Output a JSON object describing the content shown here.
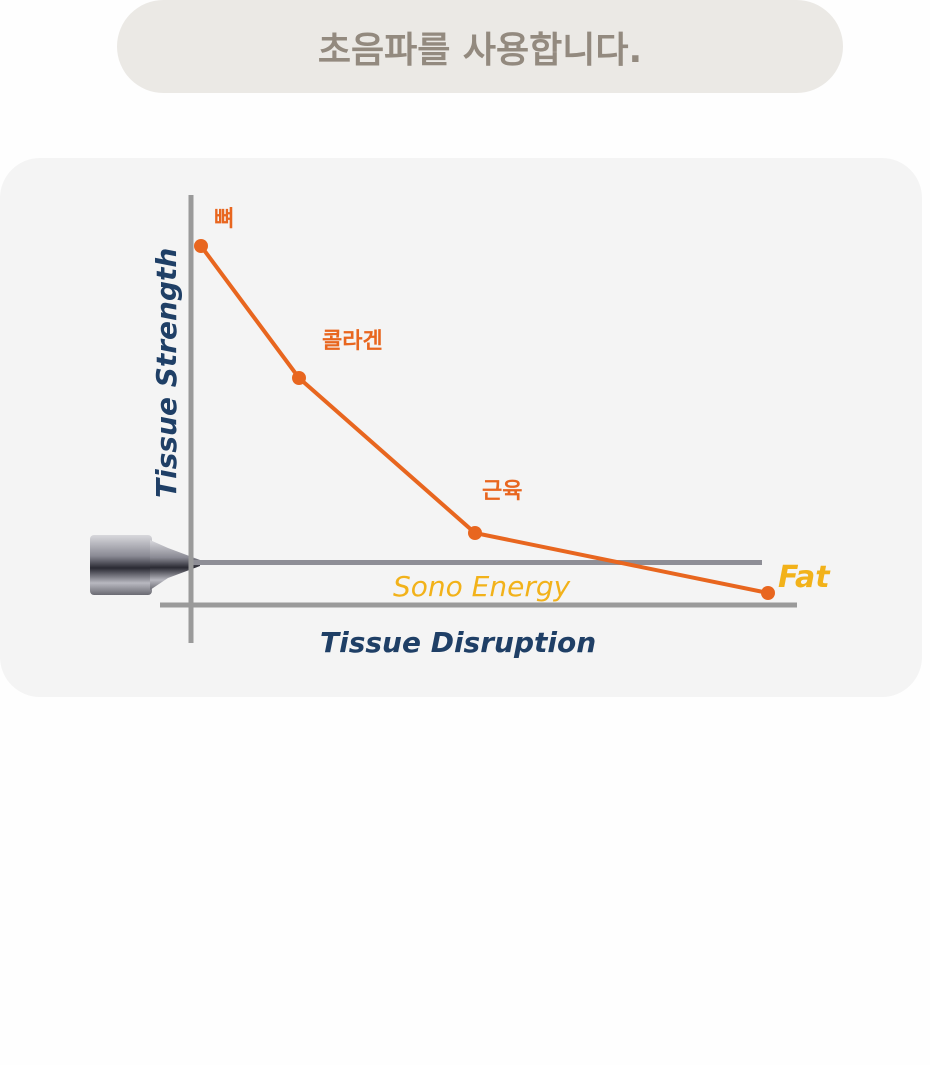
{
  "header": {
    "title": "초음파를 사용합니다."
  },
  "diagram": {
    "y_axis_label": "Tissue Strength",
    "x_axis_label": "Tissue Disruption",
    "energy_label": "Sono Energy",
    "points": [
      {
        "label": "뼈"
      },
      {
        "label": "콜라겐"
      },
      {
        "label": "근육"
      },
      {
        "label": "Fat"
      }
    ],
    "colors": {
      "line": "#e8661f",
      "axis_label": "#1f3f66",
      "energy": "#f2b21a",
      "axis": "#9a9a9a"
    }
  }
}
